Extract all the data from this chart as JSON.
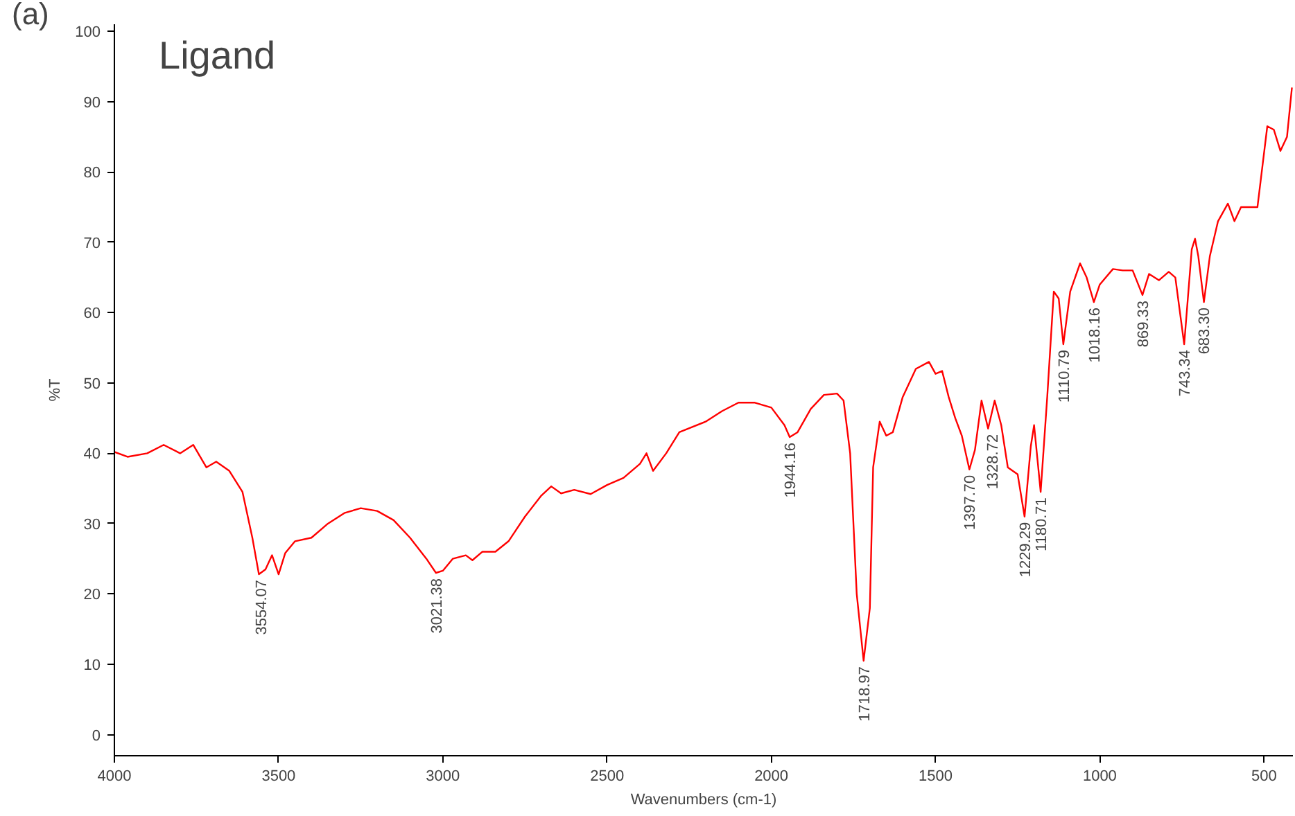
{
  "chart_data": {
    "type": "line",
    "xlabel": "Wavenumbers (cm-1)",
    "ylabel": "%T",
    "x": [
      4000,
      3960,
      3900,
      3850,
      3800,
      3760,
      3720,
      3690,
      3650,
      3610,
      3580,
      3560,
      3540,
      3520,
      3500,
      3480,
      3450,
      3400,
      3350,
      3300,
      3250,
      3200,
      3150,
      3100,
      3050,
      3021,
      3000,
      2970,
      2930,
      2910,
      2880,
      2840,
      2800,
      2750,
      2700,
      2670,
      2640,
      2600,
      2550,
      2500,
      2450,
      2400,
      2380,
      2360,
      2320,
      2280,
      2200,
      2150,
      2100,
      2050,
      2000,
      1960,
      1944,
      1920,
      1880,
      1840,
      1800,
      1780,
      1760,
      1740,
      1719,
      1700,
      1690,
      1670,
      1650,
      1630,
      1600,
      1560,
      1520,
      1500,
      1480,
      1460,
      1440,
      1420,
      1397,
      1380,
      1360,
      1340,
      1320,
      1300,
      1280,
      1250,
      1229,
      1210,
      1200,
      1180,
      1160,
      1140,
      1125,
      1111,
      1090,
      1060,
      1040,
      1018,
      1000,
      960,
      930,
      900,
      870,
      850,
      820,
      790,
      770,
      743,
      720,
      710,
      700,
      683,
      665,
      640,
      610,
      590,
      570,
      540,
      520,
      490,
      470,
      450,
      430,
      415
    ],
    "series": [
      {
        "color": "#ff0000",
        "values": [
          40.2,
          39.5,
          40,
          41.2,
          40,
          41.2,
          38,
          38.8,
          37.5,
          34.5,
          28,
          22.8,
          23.5,
          25.5,
          22.8,
          25.8,
          27.5,
          28,
          30,
          31.5,
          32.2,
          31.8,
          30.5,
          28,
          25,
          23,
          23.3,
          25,
          25.5,
          24.8,
          26,
          26,
          27.5,
          31,
          34,
          35.3,
          34.3,
          34.8,
          34.2,
          35.5,
          36.5,
          38.5,
          40,
          37.5,
          40,
          43,
          44.5,
          46,
          47.2,
          47.2,
          46.5,
          44,
          42.3,
          43,
          46.3,
          48.3,
          48.5,
          47.5,
          40,
          20,
          10.5,
          18,
          38,
          44.5,
          42.5,
          43,
          48,
          52,
          53,
          51.3,
          51.7,
          48,
          45,
          42.5,
          37.7,
          40.5,
          47.5,
          43.5,
          47.5,
          44,
          38,
          37,
          31,
          41,
          44,
          34.5,
          48,
          63,
          62,
          55.5,
          63,
          67,
          65,
          61.5,
          64,
          66.2,
          66,
          66,
          62.5,
          65.5,
          64.6,
          65.8,
          65,
          55.5,
          69,
          70.5,
          68,
          61.5,
          68,
          73,
          75.5,
          73,
          75,
          75,
          75,
          86.5,
          86,
          83,
          85,
          92
        ]
      }
    ],
    "xlim": [
      4000,
      412
    ],
    "ylim": [
      -3,
      101
    ],
    "xticks": [
      4000,
      3500,
      3000,
      2500,
      2000,
      1500,
      1000,
      500
    ],
    "yticks": [
      0,
      10,
      20,
      30,
      40,
      50,
      60,
      70,
      80,
      90,
      100
    ],
    "grid": false,
    "marker": "none",
    "line_style": "solid",
    "annotations": [
      "(a)",
      "Ligand",
      {
        "text": "3554.07",
        "x": 3554.07,
        "y": 22.8
      },
      {
        "text": "3021.38",
        "x": 3021.38,
        "y": 23
      },
      {
        "text": "1944.16",
        "x": 1944.16,
        "y": 42.3
      },
      {
        "text": "1718.97",
        "x": 1718.97,
        "y": 10.5
      },
      {
        "text": "1397.70",
        "x": 1397.7,
        "y": 37.7
      },
      {
        "text": "1328.72",
        "x": 1328.72,
        "y": 43.5
      },
      {
        "text": "1229.29",
        "x": 1229.29,
        "y": 31
      },
      {
        "text": "1180.71",
        "x": 1180.71,
        "y": 34.5
      },
      {
        "text": "1110.79",
        "x": 1110.79,
        "y": 55.5
      },
      {
        "text": "1018.16",
        "x": 1018.16,
        "y": 61.5
      },
      {
        "text": "869.33",
        "x": 869.33,
        "y": 62.5
      },
      {
        "text": "743.34",
        "x": 743.34,
        "y": 55.5
      },
      {
        "text": "683.30",
        "x": 683.3,
        "y": 61.5
      }
    ]
  }
}
